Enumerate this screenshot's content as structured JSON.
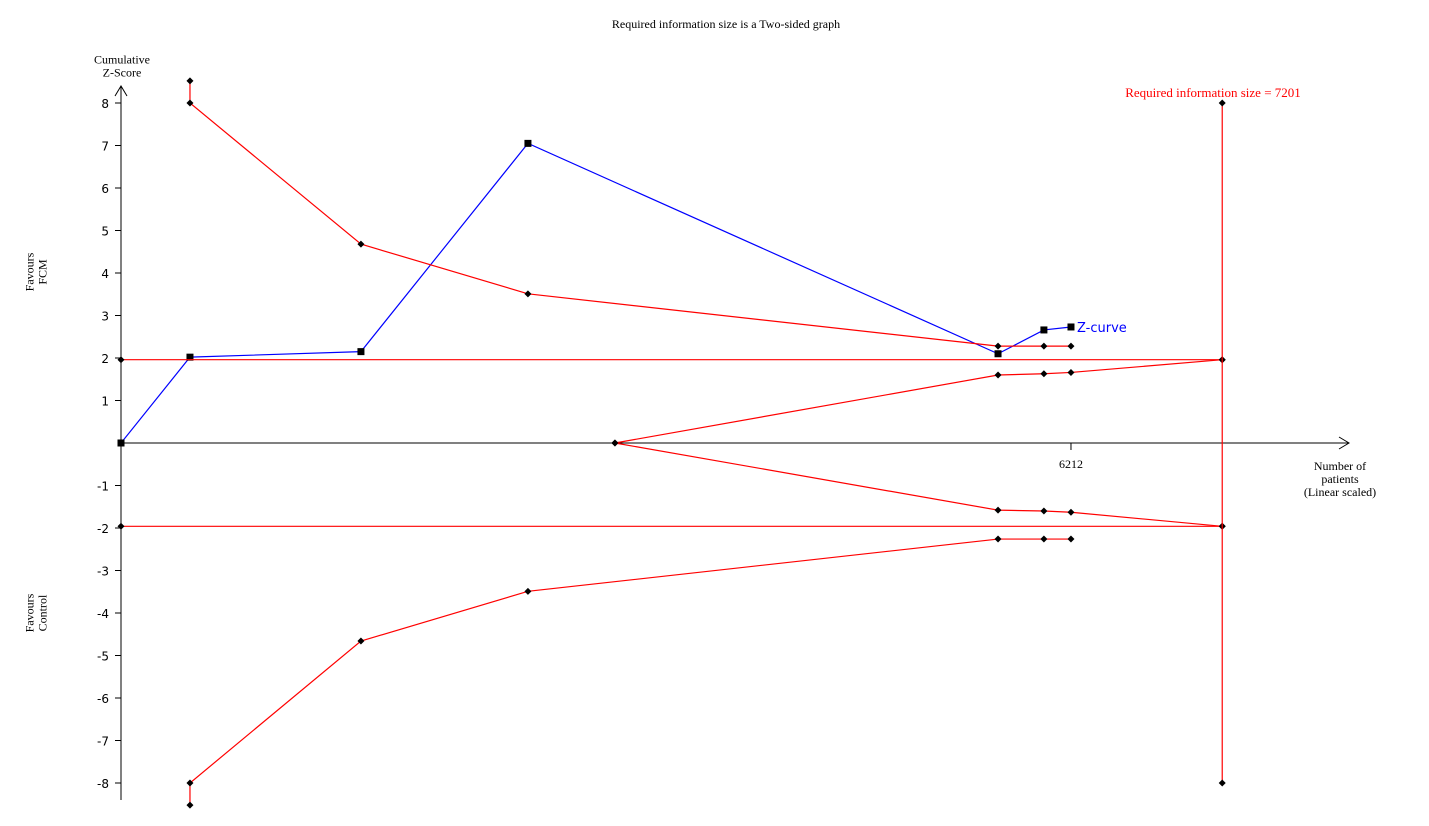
{
  "chart_data": {
    "type": "line",
    "title": "Required information size is a Two-sided graph",
    "y_label": [
      "Cumulative",
      "Z-Score"
    ],
    "x_label": [
      "Number of",
      "patients",
      "(Linear scaled)"
    ],
    "favours_upper": [
      "Favours",
      "FCM"
    ],
    "favours_lower": [
      "Favours",
      "Control"
    ],
    "annotation": "Required information size = 7201",
    "xlim": [
      0,
      8030
    ],
    "ylim": [
      -8.4,
      8.4
    ],
    "xticks": [
      6212
    ],
    "yticks": [
      -8,
      -7,
      -6,
      -5,
      -4,
      -3,
      -2,
      -1,
      1,
      2,
      3,
      4,
      5,
      6,
      7,
      8
    ],
    "series": [
      {
        "name": "Z-curve",
        "color": "#0000ff",
        "marker": "square",
        "x": [
          0,
          451,
          1569,
          2661,
          5735,
          6035,
          6212
        ],
        "values": [
          0,
          2.02,
          2.15,
          7.05,
          2.1,
          2.66,
          2.73
        ]
      },
      {
        "color": "#ff0000",
        "marker": "diamond",
        "x": [
          451,
          451,
          1569,
          2661,
          5735,
          6035,
          6212
        ],
        "values": [
          8.52,
          8,
          4.68,
          3.51,
          2.28,
          2.28,
          2.28
        ]
      },
      {
        "color": "#ff0000",
        "marker": "diamond",
        "x": [
          451,
          451,
          1569,
          2661,
          5735,
          6035,
          6212
        ],
        "values": [
          -8.52,
          -8,
          -4.66,
          -3.49,
          -2.26,
          -2.26,
          -2.26
        ]
      },
      {
        "color": "#ff0000",
        "marker": "diamond",
        "x": [
          3230,
          5735,
          6035,
          6212,
          7201
        ],
        "values": [
          0,
          1.6,
          1.63,
          1.66,
          1.96
        ]
      },
      {
        "color": "#ff0000",
        "marker": "diamond",
        "x": [
          3230,
          5735,
          6035,
          6212,
          7201
        ],
        "values": [
          0,
          -1.58,
          -1.6,
          -1.63,
          -1.96
        ]
      },
      {
        "color": "#ff0000",
        "marker": "diamond",
        "x": [
          0,
          7201
        ],
        "values": [
          1.96,
          1.96
        ]
      },
      {
        "color": "#ff0000",
        "marker": "diamond",
        "x": [
          0,
          7201
        ],
        "values": [
          -1.96,
          -1.96
        ]
      },
      {
        "color": "#ff0000",
        "marker": "diamond",
        "x": [
          7201,
          7201
        ],
        "values": [
          8,
          -8
        ]
      }
    ]
  }
}
